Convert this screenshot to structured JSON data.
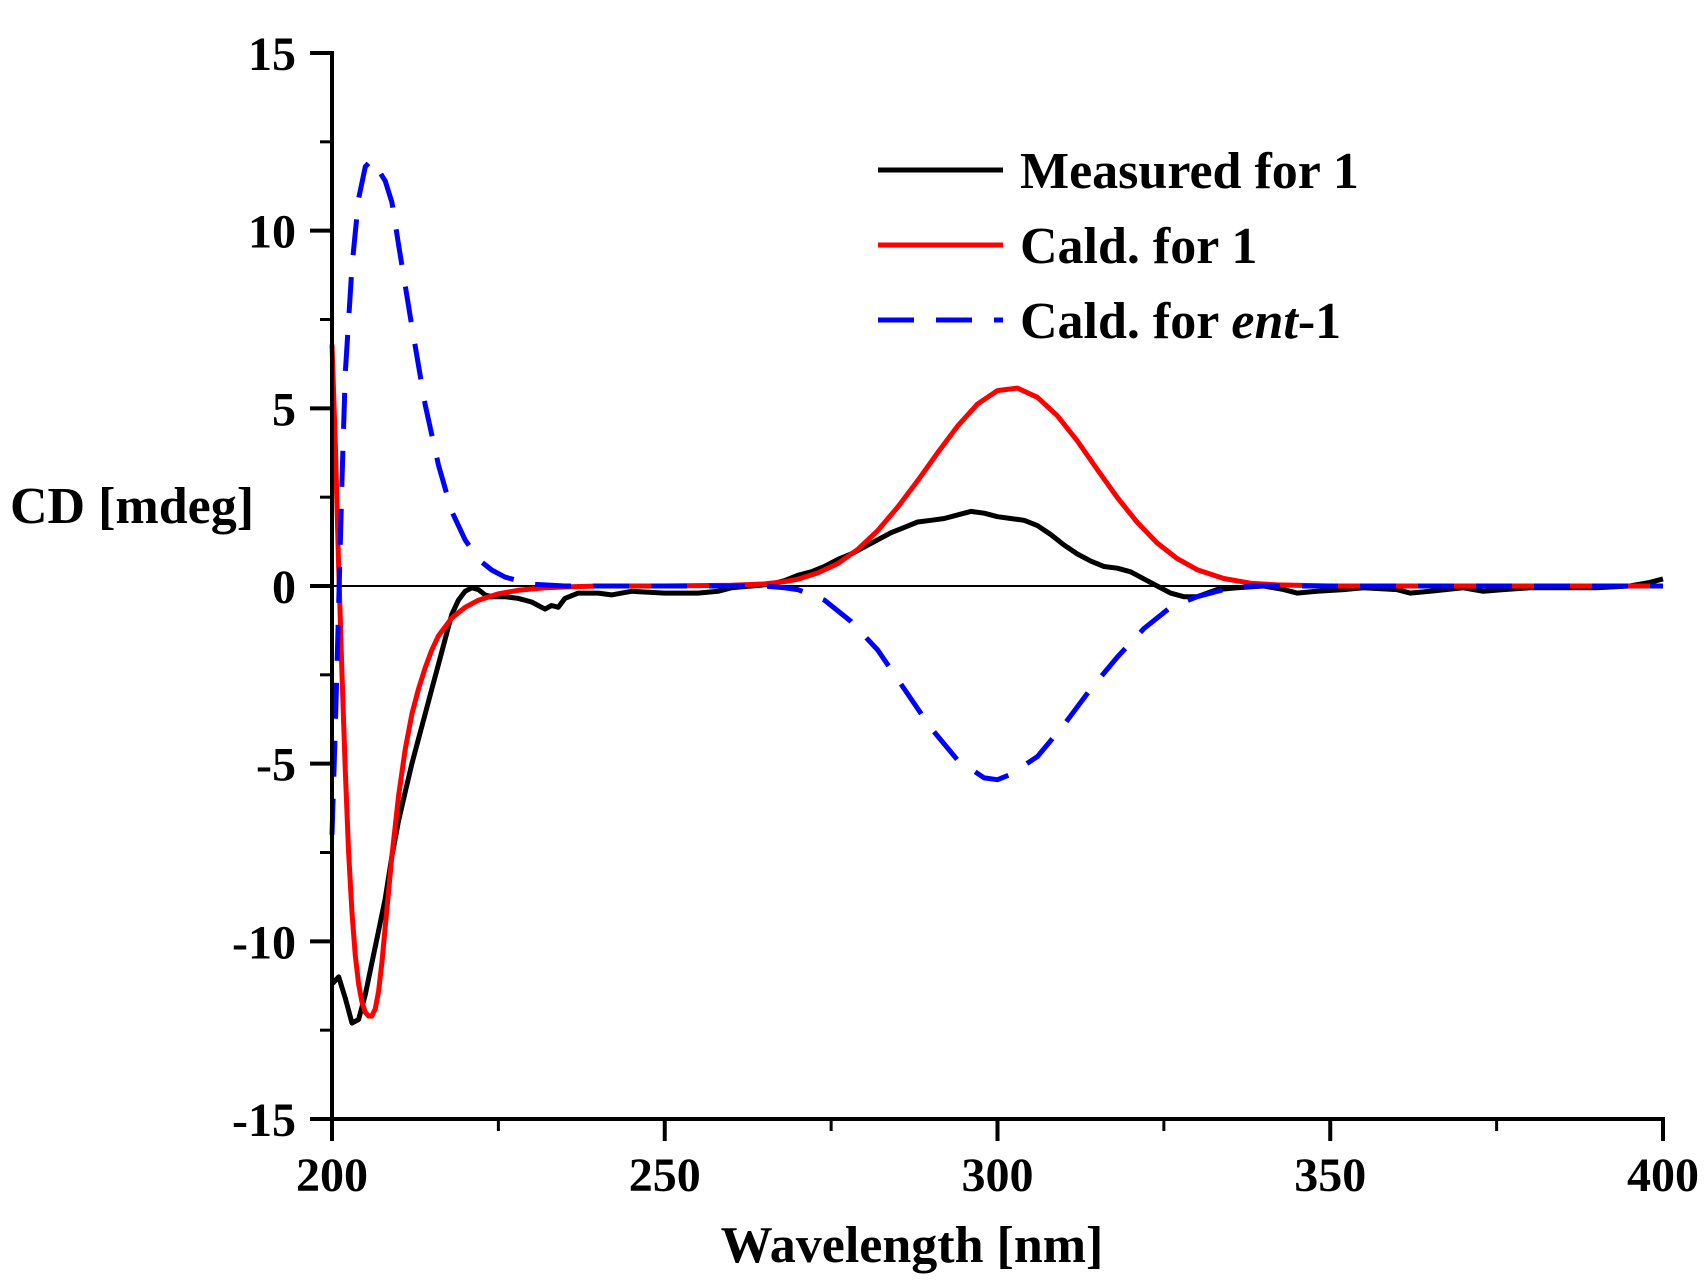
{
  "chart_data": {
    "type": "line",
    "title": "",
    "xlabel": "Wavelength [nm]",
    "ylabel": "CD [mdeg]",
    "xlim": [
      200,
      400
    ],
    "ylim": [
      -15,
      15
    ],
    "xticks": [
      200,
      250,
      300,
      350,
      400
    ],
    "xtick_labels": [
      "200",
      "250",
      "300",
      "350",
      "400"
    ],
    "yticks": [
      15,
      10,
      5,
      0,
      -5,
      -10,
      -15
    ],
    "ytick_labels": [
      "15",
      "10",
      "5",
      "0",
      "-5",
      "-10",
      "-15"
    ],
    "grid": false,
    "zero_line": true,
    "legend_position": "top-right",
    "series": [
      {
        "name": "Measured for 1",
        "legend_parts": [
          {
            "text": "Measured for 1",
            "italic": false
          }
        ],
        "color": "#000000",
        "dash": "solid",
        "points": [
          [
            200,
            -11.2
          ],
          [
            201,
            -11.0
          ],
          [
            202,
            -11.6
          ],
          [
            203,
            -12.3
          ],
          [
            204,
            -12.2
          ],
          [
            205,
            -11.5
          ],
          [
            206,
            -10.6
          ],
          [
            207,
            -9.7
          ],
          [
            208,
            -8.8
          ],
          [
            209,
            -7.6
          ],
          [
            210,
            -6.6
          ],
          [
            211,
            -5.8
          ],
          [
            212,
            -5.0
          ],
          [
            213,
            -4.3
          ],
          [
            214,
            -3.6
          ],
          [
            215,
            -2.9
          ],
          [
            216,
            -2.2
          ],
          [
            217,
            -1.5
          ],
          [
            218,
            -0.8
          ],
          [
            219,
            -0.4
          ],
          [
            220,
            -0.15
          ],
          [
            221,
            -0.05
          ],
          [
            222,
            -0.1
          ],
          [
            223,
            -0.25
          ],
          [
            224,
            -0.3
          ],
          [
            225,
            -0.3
          ],
          [
            226,
            -0.3
          ],
          [
            228,
            -0.35
          ],
          [
            230,
            -0.45
          ],
          [
            232,
            -0.65
          ],
          [
            233,
            -0.55
          ],
          [
            234,
            -0.6
          ],
          [
            235,
            -0.35
          ],
          [
            237,
            -0.2
          ],
          [
            240,
            -0.2
          ],
          [
            242,
            -0.25
          ],
          [
            245,
            -0.15
          ],
          [
            250,
            -0.2
          ],
          [
            255,
            -0.2
          ],
          [
            258,
            -0.15
          ],
          [
            260,
            -0.05
          ],
          [
            263,
            0.0
          ],
          [
            266,
            0.05
          ],
          [
            268,
            0.15
          ],
          [
            270,
            0.3
          ],
          [
            272,
            0.4
          ],
          [
            274,
            0.55
          ],
          [
            276,
            0.75
          ],
          [
            278,
            0.9
          ],
          [
            280,
            1.1
          ],
          [
            282,
            1.3
          ],
          [
            284,
            1.5
          ],
          [
            286,
            1.65
          ],
          [
            288,
            1.8
          ],
          [
            290,
            1.85
          ],
          [
            292,
            1.9
          ],
          [
            294,
            2.0
          ],
          [
            296,
            2.1
          ],
          [
            298,
            2.05
          ],
          [
            300,
            1.95
          ],
          [
            302,
            1.9
          ],
          [
            304,
            1.85
          ],
          [
            306,
            1.7
          ],
          [
            308,
            1.45
          ],
          [
            310,
            1.15
          ],
          [
            312,
            0.9
          ],
          [
            314,
            0.7
          ],
          [
            316,
            0.55
          ],
          [
            318,
            0.5
          ],
          [
            320,
            0.4
          ],
          [
            322,
            0.2
          ],
          [
            324,
            0.0
          ],
          [
            326,
            -0.2
          ],
          [
            328,
            -0.3
          ],
          [
            330,
            -0.3
          ],
          [
            333,
            -0.1
          ],
          [
            336,
            -0.05
          ],
          [
            340,
            0.0
          ],
          [
            343,
            -0.1
          ],
          [
            345,
            -0.2
          ],
          [
            348,
            -0.15
          ],
          [
            352,
            -0.1
          ],
          [
            355,
            -0.05
          ],
          [
            360,
            -0.1
          ],
          [
            362,
            -0.2
          ],
          [
            365,
            -0.15
          ],
          [
            370,
            -0.05
          ],
          [
            373,
            -0.15
          ],
          [
            376,
            -0.1
          ],
          [
            380,
            -0.05
          ],
          [
            385,
            -0.05
          ],
          [
            390,
            -0.05
          ],
          [
            395,
            0.0
          ],
          [
            398,
            0.1
          ],
          [
            400,
            0.2
          ]
        ]
      },
      {
        "name": "Cald. for 1",
        "legend_parts": [
          {
            "text": "Cald. for 1",
            "italic": false
          }
        ],
        "color": "#ff0000",
        "dash": "solid",
        "points": [
          [
            200,
            6.8
          ],
          [
            200.5,
            4.0
          ],
          [
            201,
            0.5
          ],
          [
            201.5,
            -2.5
          ],
          [
            202,
            -5.2
          ],
          [
            202.5,
            -7.5
          ],
          [
            203,
            -9.2
          ],
          [
            203.5,
            -10.4
          ],
          [
            204,
            -11.2
          ],
          [
            204.5,
            -11.7
          ],
          [
            205,
            -12.0
          ],
          [
            205.5,
            -12.1
          ],
          [
            206,
            -12.1
          ],
          [
            206.5,
            -11.9
          ],
          [
            207,
            -11.4
          ],
          [
            207.5,
            -10.6
          ],
          [
            208,
            -9.6
          ],
          [
            209,
            -7.6
          ],
          [
            210,
            -5.9
          ],
          [
            211,
            -4.6
          ],
          [
            212,
            -3.6
          ],
          [
            213,
            -2.9
          ],
          [
            214,
            -2.3
          ],
          [
            215,
            -1.8
          ],
          [
            216,
            -1.4
          ],
          [
            218,
            -0.9
          ],
          [
            220,
            -0.6
          ],
          [
            222,
            -0.4
          ],
          [
            225,
            -0.22
          ],
          [
            228,
            -0.12
          ],
          [
            232,
            -0.05
          ],
          [
            236,
            -0.02
          ],
          [
            240,
            0.0
          ],
          [
            250,
            0.0
          ],
          [
            260,
            0.02
          ],
          [
            265,
            0.06
          ],
          [
            268,
            0.12
          ],
          [
            270,
            0.19
          ],
          [
            273,
            0.37
          ],
          [
            276,
            0.63
          ],
          [
            279,
            1.03
          ],
          [
            282,
            1.56
          ],
          [
            285,
            2.22
          ],
          [
            288,
            2.96
          ],
          [
            291,
            3.75
          ],
          [
            294,
            4.5
          ],
          [
            297,
            5.12
          ],
          [
            300,
            5.5
          ],
          [
            303,
            5.57
          ],
          [
            306,
            5.31
          ],
          [
            309,
            4.79
          ],
          [
            312,
            4.08
          ],
          [
            315,
            3.28
          ],
          [
            318,
            2.49
          ],
          [
            321,
            1.79
          ],
          [
            324,
            1.21
          ],
          [
            327,
            0.77
          ],
          [
            330,
            0.46
          ],
          [
            334,
            0.21
          ],
          [
            338,
            0.08
          ],
          [
            342,
            0.03
          ],
          [
            350,
            0.0
          ],
          [
            400,
            0.0
          ]
        ]
      },
      {
        "name": "Cald. for ent-1",
        "legend_parts": [
          {
            "text": "Cald. for ",
            "italic": false
          },
          {
            "text": "ent",
            "italic": true
          },
          {
            "text": "-1",
            "italic": false
          }
        ],
        "color": "#0000ff",
        "dash": "dashed",
        "points": [
          [
            200,
            -7.0
          ],
          [
            200.5,
            -4.0
          ],
          [
            201,
            -0.5
          ],
          [
            201.5,
            3.0
          ],
          [
            202,
            6.0
          ],
          [
            203,
            9.0
          ],
          [
            204,
            10.9
          ],
          [
            205,
            11.8
          ],
          [
            206,
            12.0
          ],
          [
            207,
            11.7
          ],
          [
            208,
            11.4
          ],
          [
            209,
            10.8
          ],
          [
            210,
            9.6
          ],
          [
            212,
            7.3
          ],
          [
            214,
            5.1
          ],
          [
            216,
            3.4
          ],
          [
            218,
            2.1
          ],
          [
            220,
            1.3
          ],
          [
            222,
            0.75
          ],
          [
            224,
            0.45
          ],
          [
            226,
            0.25
          ],
          [
            230,
            0.05
          ],
          [
            235,
            0.0
          ],
          [
            260,
            0.0
          ],
          [
            265,
            0.0
          ],
          [
            268,
            -0.05
          ],
          [
            270,
            -0.1
          ],
          [
            274,
            -0.4
          ],
          [
            278,
            -1.0
          ],
          [
            282,
            -1.8
          ],
          [
            286,
            -2.9
          ],
          [
            290,
            -4.0
          ],
          [
            294,
            -4.9
          ],
          [
            298,
            -5.4
          ],
          [
            300,
            -5.45
          ],
          [
            302,
            -5.3
          ],
          [
            306,
            -4.8
          ],
          [
            310,
            -3.9
          ],
          [
            314,
            -2.9
          ],
          [
            318,
            -2.0
          ],
          [
            322,
            -1.2
          ],
          [
            326,
            -0.6
          ],
          [
            330,
            -0.3
          ],
          [
            334,
            -0.1
          ],
          [
            338,
            0.0
          ],
          [
            345,
            0.0
          ],
          [
            400,
            0.0
          ]
        ]
      }
    ]
  }
}
